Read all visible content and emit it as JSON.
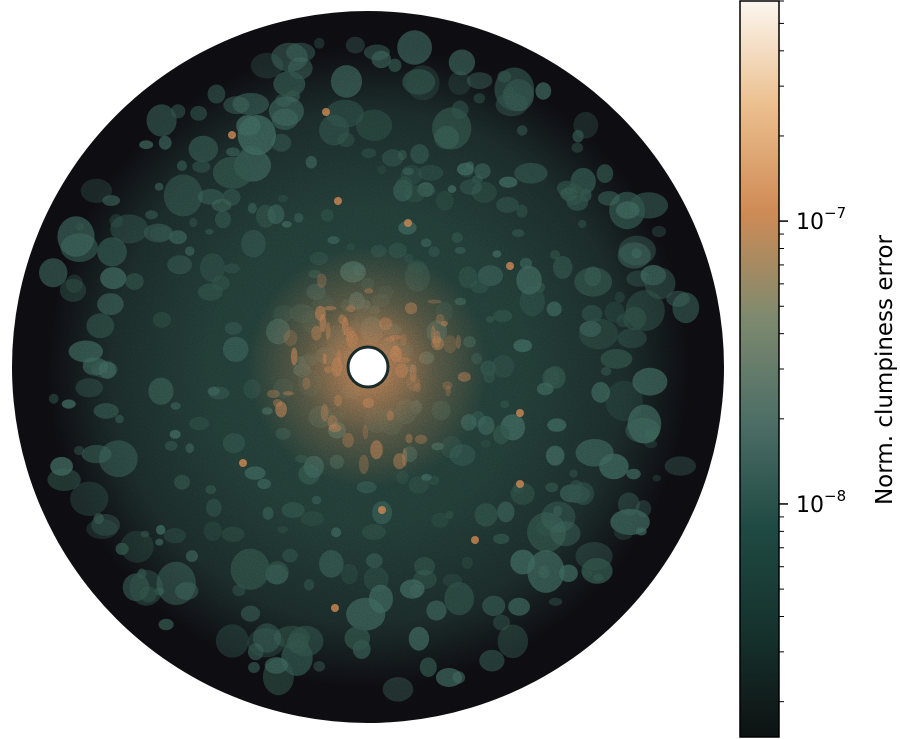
{
  "chart_data": {
    "type": "heatmap",
    "title": "",
    "xlabel": "",
    "ylabel": "",
    "colorbar": {
      "label": "Norm. clumpiness error",
      "scale": "log",
      "range": [
        1.5e-09,
        6e-07
      ],
      "major_ticks": [
        {
          "value": 1e-08,
          "base": "10",
          "exponent": "−8"
        },
        {
          "value": 1e-07,
          "base": "10",
          "exponent": "−7"
        }
      ],
      "minor_ticks": [
        2e-09,
        3e-09,
        4e-09,
        5e-09,
        6e-09,
        7e-09,
        8e-09,
        9e-09,
        2e-08,
        3e-08,
        4e-08,
        5e-08,
        6e-08,
        7e-08,
        8e-08,
        9e-08,
        2e-07,
        3e-07,
        4e-07,
        5e-07,
        6e-07
      ],
      "colormap": [
        "#0d1212",
        "#16322d",
        "#1f4a43",
        "#4d6e66",
        "#7e8a6f",
        "#cf8b55",
        "#ebbf8e",
        "#fbf6ef"
      ]
    },
    "map": {
      "shape": "disk",
      "background_value_color": "#111016",
      "center_mask_color": "#ffffff",
      "field_color": "#2e5249",
      "inner_glow_color": "#d69563",
      "hotspot_color": "#e59a5e"
    }
  }
}
